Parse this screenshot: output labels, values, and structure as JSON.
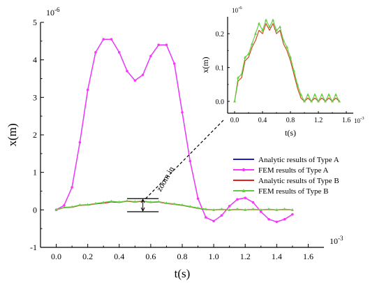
{
  "chart_data": [
    {
      "type": "line",
      "xlabel": "t(s)",
      "ylabel": "x(m)",
      "x_scale_label": "10^-3",
      "y_scale_label": "10^-6",
      "xlim": [
        -0.1,
        1.7
      ],
      "ylim": [
        -1,
        5
      ],
      "xticks": [
        0.0,
        0.2,
        0.4,
        0.6,
        0.8,
        1.0,
        1.2,
        1.4,
        1.6
      ],
      "xtick_labels": [
        "0.0",
        "0.2",
        "0.4",
        "0.6",
        "0.8",
        "1.0",
        "1.2",
        "1.4",
        "1.6"
      ],
      "yticks": [
        -1,
        0,
        1,
        2,
        3,
        4,
        5
      ],
      "ytick_labels": [
        "-1",
        "0",
        "1",
        "2",
        "3",
        "4",
        "5"
      ],
      "legend_position": "center-right",
      "series": [
        {
          "name": "Analytic results of Type A",
          "color": "#1f1fbf",
          "marker": "none",
          "x": [
            0.0,
            0.05,
            0.1,
            0.15,
            0.2,
            0.25,
            0.3,
            0.35,
            0.4,
            0.45,
            0.5,
            0.55,
            0.6,
            0.65,
            0.7,
            0.75,
            0.8,
            0.85,
            0.9,
            0.95,
            1.0,
            1.05,
            1.1,
            1.15,
            1.2,
            1.25,
            1.3,
            1.35,
            1.4,
            1.45,
            1.5
          ],
          "y": [
            0.0,
            0.12,
            0.6,
            1.8,
            3.2,
            4.2,
            4.55,
            4.55,
            4.2,
            3.7,
            3.45,
            3.6,
            4.1,
            4.4,
            4.4,
            3.9,
            2.6,
            1.3,
            0.3,
            -0.2,
            -0.3,
            -0.15,
            0.1,
            0.28,
            0.32,
            0.2,
            -0.05,
            -0.25,
            -0.32,
            -0.25,
            -0.12
          ]
        },
        {
          "name": "FEM results of Type A",
          "color": "#ff33ff",
          "marker": "circle",
          "x": [
            0.0,
            0.05,
            0.1,
            0.15,
            0.2,
            0.25,
            0.3,
            0.35,
            0.4,
            0.45,
            0.5,
            0.55,
            0.6,
            0.65,
            0.7,
            0.75,
            0.8,
            0.85,
            0.9,
            0.95,
            1.0,
            1.05,
            1.1,
            1.15,
            1.2,
            1.25,
            1.3,
            1.35,
            1.4,
            1.45,
            1.5
          ],
          "y": [
            0.0,
            0.12,
            0.6,
            1.8,
            3.2,
            4.2,
            4.55,
            4.55,
            4.2,
            3.7,
            3.45,
            3.6,
            4.1,
            4.4,
            4.4,
            3.9,
            2.6,
            1.3,
            0.3,
            -0.2,
            -0.3,
            -0.15,
            0.1,
            0.28,
            0.32,
            0.2,
            -0.05,
            -0.25,
            -0.32,
            -0.25,
            -0.12
          ]
        },
        {
          "name": "Analytic results of Type B",
          "color": "#e02020",
          "marker": "none",
          "x": [
            0.0,
            0.05,
            0.1,
            0.15,
            0.2,
            0.25,
            0.3,
            0.35,
            0.4,
            0.45,
            0.5,
            0.55,
            0.6,
            0.65,
            0.7,
            0.75,
            0.8,
            0.85,
            0.9,
            0.95,
            1.0,
            1.05,
            1.1,
            1.15,
            1.2,
            1.25,
            1.3,
            1.35,
            1.4,
            1.45,
            1.5
          ],
          "y": [
            0.0,
            0.06,
            0.07,
            0.12,
            0.13,
            0.16,
            0.18,
            0.21,
            0.2,
            0.23,
            0.21,
            0.23,
            0.2,
            0.21,
            0.17,
            0.15,
            0.12,
            0.08,
            0.04,
            0.01,
            0.0,
            0.01,
            0.0,
            0.01,
            0.0,
            0.01,
            0.0,
            0.01,
            0.0,
            0.01,
            0.0
          ]
        },
        {
          "name": "FEM results of Type B",
          "color": "#66cc44",
          "marker": "triangle",
          "x": [
            0.0,
            0.05,
            0.1,
            0.15,
            0.2,
            0.25,
            0.3,
            0.35,
            0.4,
            0.45,
            0.5,
            0.55,
            0.6,
            0.65,
            0.7,
            0.75,
            0.8,
            0.85,
            0.9,
            0.95,
            1.0,
            1.05,
            1.1,
            1.15,
            1.2,
            1.25,
            1.3,
            1.35,
            1.4,
            1.45,
            1.5
          ],
          "y": [
            0.0,
            0.07,
            0.08,
            0.13,
            0.14,
            0.17,
            0.2,
            0.23,
            0.21,
            0.24,
            0.22,
            0.24,
            0.21,
            0.22,
            0.18,
            0.16,
            0.13,
            0.09,
            0.05,
            0.02,
            0.0,
            0.02,
            0.0,
            0.02,
            0.0,
            0.02,
            0.0,
            0.02,
            0.0,
            0.02,
            0.0
          ]
        }
      ],
      "annotation": {
        "text": "zoom in",
        "region_x": [
          0.45,
          0.65
        ],
        "region_y": [
          -0.05,
          0.3
        ]
      }
    },
    {
      "type": "line",
      "xlabel": "t(s)",
      "ylabel": "x(m)",
      "x_scale_label": "10^-3",
      "y_scale_label": "10^-6",
      "xlim": [
        -0.1,
        1.7
      ],
      "ylim": [
        -0.035,
        0.25
      ],
      "xticks": [
        0.0,
        0.4,
        0.8,
        1.2,
        1.6
      ],
      "xtick_labels": [
        "0.0",
        "0.4",
        "0.8",
        "1.2",
        "1.6"
      ],
      "yticks": [
        0.0,
        0.1,
        0.2
      ],
      "ytick_labels": [
        "0.0",
        "0.1",
        "0.2"
      ],
      "series": [
        {
          "name": "Analytic results of Type B",
          "color": "#c84b1e",
          "marker": "none",
          "x": [
            0.0,
            0.05,
            0.1,
            0.15,
            0.2,
            0.25,
            0.3,
            0.35,
            0.4,
            0.45,
            0.5,
            0.55,
            0.6,
            0.65,
            0.7,
            0.75,
            0.8,
            0.85,
            0.9,
            0.95,
            1.0,
            1.05,
            1.1,
            1.15,
            1.2,
            1.25,
            1.3,
            1.35,
            1.4,
            1.45,
            1.5
          ],
          "y": [
            0.0,
            0.06,
            0.07,
            0.12,
            0.13,
            0.16,
            0.18,
            0.21,
            0.2,
            0.23,
            0.21,
            0.23,
            0.2,
            0.21,
            0.17,
            0.15,
            0.12,
            0.08,
            0.04,
            0.01,
            0.0,
            0.01,
            0.0,
            0.01,
            0.0,
            0.01,
            0.0,
            0.01,
            0.0,
            0.01,
            0.0
          ]
        },
        {
          "name": "FEM results of Type B",
          "color": "#66cc44",
          "marker": "triangle",
          "x": [
            0.0,
            0.05,
            0.1,
            0.15,
            0.2,
            0.25,
            0.3,
            0.35,
            0.4,
            0.45,
            0.5,
            0.55,
            0.6,
            0.65,
            0.7,
            0.75,
            0.8,
            0.85,
            0.9,
            0.95,
            1.0,
            1.05,
            1.1,
            1.15,
            1.2,
            1.25,
            1.3,
            1.35,
            1.4,
            1.45,
            1.5
          ],
          "y": [
            0.0,
            0.07,
            0.08,
            0.13,
            0.14,
            0.17,
            0.2,
            0.23,
            0.21,
            0.24,
            0.22,
            0.24,
            0.21,
            0.22,
            0.18,
            0.16,
            0.13,
            0.09,
            0.05,
            0.02,
            0.0,
            0.02,
            0.0,
            0.02,
            0.0,
            0.02,
            0.0,
            0.02,
            0.0,
            0.02,
            0.0
          ]
        }
      ]
    }
  ]
}
